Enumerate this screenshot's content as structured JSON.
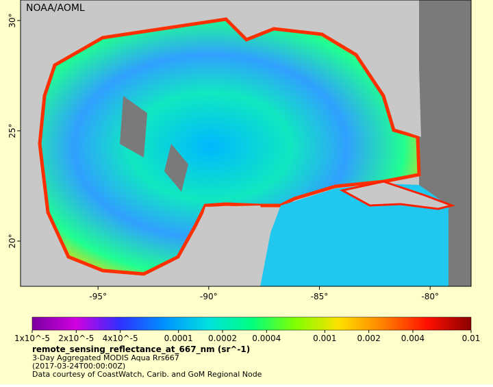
{
  "map": {
    "credit": "NOAA/AOML",
    "xlim": [
      -98.5,
      -78.15
    ],
    "ylim": [
      17.95,
      30.93
    ],
    "xticks": [
      {
        "value": -95,
        "label": "-95°"
      },
      {
        "value": -90,
        "label": "-90°"
      },
      {
        "value": -85,
        "label": "-85°"
      },
      {
        "value": -80,
        "label": "-80°"
      }
    ],
    "yticks": [
      {
        "value": 20,
        "label": "20°"
      },
      {
        "value": 25,
        "label": "25°"
      },
      {
        "value": 30,
        "label": "30°"
      }
    ]
  },
  "colorbar": {
    "scale": "log",
    "lim": [
      1e-05,
      0.01
    ],
    "colors": [
      "#7a00a0",
      "#d000e0",
      "#3030ff",
      "#0090ff",
      "#00e0e0",
      "#00ff80",
      "#80ff00",
      "#ffe000",
      "#ff8000",
      "#ff1000",
      "#8a0000"
    ],
    "ticks": [
      {
        "value": 1e-05,
        "label": "1x10^-5"
      },
      {
        "value": 2e-05,
        "label": "2x10^-5"
      },
      {
        "value": 4e-05,
        "label": "4x10^-5"
      },
      {
        "value": 0.0001,
        "label": "0.0001"
      },
      {
        "value": 0.0002,
        "label": "0.0002"
      },
      {
        "value": 0.0004,
        "label": "0.0004"
      },
      {
        "value": 0.001,
        "label": "0.001"
      },
      {
        "value": 0.002,
        "label": "0.002"
      },
      {
        "value": 0.004,
        "label": "0.004"
      },
      {
        "value": 0.01,
        "label": "0.01"
      }
    ]
  },
  "caption": {
    "variable": "remote_sensing_reflectance_at_667_nm (sr^-1)",
    "lines": [
      "3-Day Aggregated MODIS Aqua Rrs667",
      "(2017-03-24T00:00:00Z)",
      "Data courtesy of CoastWatch, Carib. and GoM Regional Node"
    ]
  }
}
